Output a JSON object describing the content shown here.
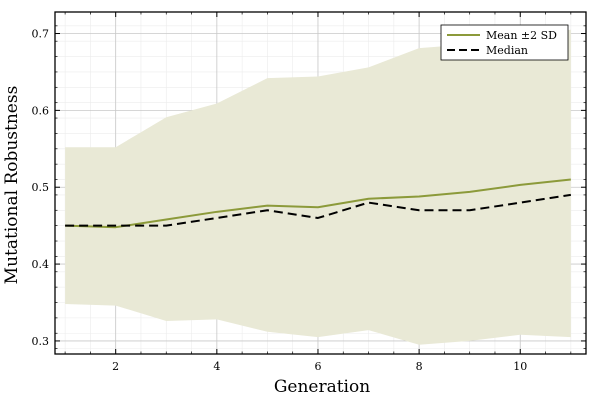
{
  "chart_data": {
    "type": "line",
    "xlabel": "Generation",
    "ylabel": "Mutational Robustness",
    "xlim": [
      0.8,
      11.3
    ],
    "ylim": [
      0.283,
      0.728
    ],
    "x": [
      1,
      2,
      3,
      4,
      5,
      6,
      7,
      8,
      9,
      10,
      11
    ],
    "xticks": [
      2,
      4,
      6,
      8,
      10
    ],
    "yticks": [
      0.3,
      0.4,
      0.5,
      0.6,
      0.7
    ],
    "xtick_labels": [
      "2",
      "4",
      "6",
      "8",
      "10"
    ],
    "ytick_labels": [
      "0.3",
      "0.4",
      "0.5",
      "0.6",
      "0.7"
    ],
    "grid": true,
    "legend_position": "top-right",
    "series": [
      {
        "name": "Mean ±2 SD",
        "style": "solid",
        "color": "#8c9a3a",
        "values": [
          0.45,
          0.448,
          0.458,
          0.468,
          0.476,
          0.474,
          0.485,
          0.488,
          0.494,
          0.503,
          0.51
        ],
        "band_upper": [
          0.552,
          0.552,
          0.591,
          0.609,
          0.642,
          0.644,
          0.656,
          0.681,
          0.686,
          0.692,
          0.705
        ],
        "band_lower": [
          0.348,
          0.346,
          0.326,
          0.328,
          0.312,
          0.305,
          0.314,
          0.295,
          0.3,
          0.308,
          0.305
        ],
        "band_color": "#e9e9d6"
      },
      {
        "name": "Median",
        "style": "dashed",
        "color": "#000000",
        "values": [
          0.45,
          0.45,
          0.45,
          0.46,
          0.47,
          0.46,
          0.48,
          0.47,
          0.47,
          0.48,
          0.49
        ]
      }
    ]
  }
}
